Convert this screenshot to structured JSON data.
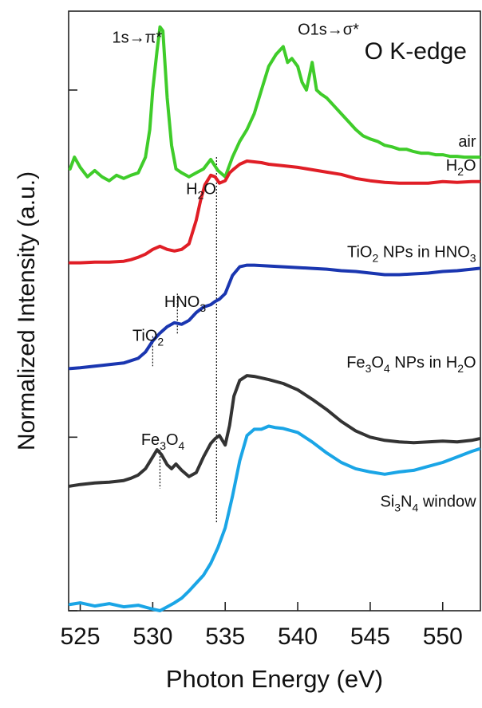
{
  "chart_data": {
    "type": "line",
    "title": "O K-edge",
    "xlabel": "Photon Energy (eV)",
    "ylabel": "Normalized Intensity (a.u.)",
    "xlim": [
      524.2,
      552.6
    ],
    "ylim": [
      0,
      7.6
    ],
    "x_ticks": [
      525,
      530,
      535,
      540,
      545,
      550
    ],
    "x_tick_labels": [
      "525",
      "530",
      "535",
      "540",
      "545",
      "550"
    ],
    "y_ticks_labels": false,
    "colors": {
      "air": "#3fcc2a",
      "h2o": "#e01e26",
      "tio2": "#1a36b0",
      "fe3o4": "#333333",
      "si3n4": "#1aa5e6"
    },
    "series": [
      {
        "key": "air",
        "name": "air",
        "x": [
          524.3,
          524.6,
          525.0,
          525.5,
          526.0,
          526.5,
          527.0,
          527.5,
          528.0,
          528.5,
          529.0,
          529.5,
          529.8,
          530.0,
          530.3,
          530.5,
          530.7,
          531.0,
          531.3,
          531.6,
          532.0,
          532.5,
          533.0,
          533.5,
          534.0,
          534.5,
          535.0,
          535.5,
          536.0,
          536.5,
          537.0,
          537.5,
          538.0,
          538.5,
          539.0,
          539.3,
          539.6,
          540.0,
          540.3,
          540.6,
          541.0,
          541.3,
          541.6,
          542.0,
          542.5,
          543.0,
          543.5,
          544.0,
          544.5,
          545.0,
          545.5,
          546.0,
          546.5,
          547.0,
          547.5,
          548.0,
          548.5,
          549.0,
          549.5,
          550.0,
          550.5,
          551.0,
          551.5,
          552.0,
          552.5
        ],
        "y": [
          5.6,
          5.75,
          5.62,
          5.5,
          5.58,
          5.5,
          5.45,
          5.52,
          5.48,
          5.52,
          5.55,
          5.75,
          6.1,
          6.6,
          7.1,
          7.4,
          7.35,
          6.5,
          5.9,
          5.6,
          5.55,
          5.5,
          5.55,
          5.6,
          5.72,
          5.58,
          5.5,
          5.75,
          5.95,
          6.1,
          6.3,
          6.6,
          6.9,
          7.05,
          7.15,
          6.95,
          7.0,
          6.9,
          6.7,
          6.6,
          6.95,
          6.6,
          6.55,
          6.5,
          6.4,
          6.3,
          6.2,
          6.1,
          6.02,
          5.98,
          5.95,
          5.9,
          5.88,
          5.85,
          5.85,
          5.82,
          5.8,
          5.8,
          5.78,
          5.78,
          5.76,
          5.76,
          5.75,
          5.75,
          5.75
        ]
      },
      {
        "key": "h2o",
        "name": "H₂O",
        "x": [
          524.3,
          525.0,
          526.0,
          527.0,
          528.0,
          528.5,
          529.0,
          529.5,
          530.0,
          530.5,
          531.0,
          531.5,
          532.0,
          532.5,
          533.0,
          533.3,
          533.6,
          534.0,
          534.3,
          534.6,
          535.0,
          535.3,
          535.6,
          536.0,
          536.5,
          537.0,
          537.5,
          538.0,
          539.0,
          540.0,
          541.0,
          542.0,
          543.0,
          544.0,
          545.0,
          546.0,
          547.0,
          548.0,
          549.0,
          550.0,
          551.0,
          552.0,
          552.5
        ],
        "y": [
          4.41,
          4.41,
          4.42,
          4.42,
          4.43,
          4.45,
          4.48,
          4.52,
          4.58,
          4.62,
          4.58,
          4.56,
          4.58,
          4.65,
          4.95,
          5.2,
          5.4,
          5.52,
          5.5,
          5.42,
          5.45,
          5.55,
          5.6,
          5.66,
          5.7,
          5.69,
          5.68,
          5.66,
          5.64,
          5.62,
          5.59,
          5.56,
          5.53,
          5.48,
          5.45,
          5.43,
          5.42,
          5.42,
          5.42,
          5.44,
          5.43,
          5.44,
          5.44
        ]
      },
      {
        "key": "tio2",
        "name": "TiO₂ NPs in HNO₃",
        "x": [
          524.3,
          525.0,
          526.0,
          527.0,
          528.0,
          529.0,
          529.5,
          530.0,
          530.5,
          531.0,
          531.5,
          532.0,
          532.5,
          533.0,
          533.5,
          534.0,
          534.3,
          534.6,
          535.0,
          535.5,
          536.0,
          536.5,
          537.0,
          538.0,
          539.0,
          540.0,
          541.0,
          542.0,
          543.0,
          544.0,
          545.0,
          546.0,
          547.0,
          548.0,
          549.0,
          550.0,
          551.0,
          552.0,
          552.5
        ],
        "y": [
          3.07,
          3.08,
          3.1,
          3.12,
          3.14,
          3.2,
          3.28,
          3.42,
          3.52,
          3.6,
          3.65,
          3.63,
          3.68,
          3.78,
          3.85,
          3.88,
          3.92,
          3.95,
          4.02,
          4.25,
          4.36,
          4.38,
          4.38,
          4.37,
          4.36,
          4.35,
          4.34,
          4.33,
          4.31,
          4.3,
          4.28,
          4.26,
          4.26,
          4.27,
          4.28,
          4.3,
          4.31,
          4.33,
          4.34
        ]
      },
      {
        "key": "fe3o4",
        "name": "Fe₃O₄ NPs in H₂O",
        "x": [
          524.3,
          525.0,
          526.0,
          527.0,
          528.0,
          528.5,
          529.0,
          529.5,
          530.0,
          530.3,
          530.6,
          531.0,
          531.3,
          531.6,
          532.0,
          532.5,
          533.0,
          533.5,
          534.0,
          534.3,
          534.6,
          535.0,
          535.3,
          535.6,
          536.0,
          536.5,
          537.0,
          538.0,
          539.0,
          540.0,
          541.0,
          542.0,
          543.0,
          544.0,
          545.0,
          546.0,
          547.0,
          548.0,
          549.0,
          550.0,
          551.0,
          552.0,
          552.5
        ],
        "y": [
          1.58,
          1.6,
          1.62,
          1.63,
          1.65,
          1.68,
          1.72,
          1.8,
          1.95,
          2.04,
          1.98,
          1.85,
          1.8,
          1.86,
          1.78,
          1.7,
          1.75,
          1.95,
          2.12,
          2.18,
          2.22,
          2.1,
          2.35,
          2.72,
          2.92,
          2.98,
          2.97,
          2.93,
          2.88,
          2.8,
          2.68,
          2.55,
          2.4,
          2.28,
          2.2,
          2.16,
          2.14,
          2.13,
          2.14,
          2.15,
          2.14,
          2.16,
          2.18
        ]
      },
      {
        "key": "si3n4",
        "name": "Si₃N₄ window",
        "x": [
          524.3,
          525.0,
          526.0,
          527.0,
          528.0,
          529.0,
          530.0,
          530.5,
          531.0,
          531.5,
          532.0,
          532.5,
          533.0,
          533.5,
          534.0,
          534.5,
          535.0,
          535.5,
          536.0,
          536.5,
          537.0,
          537.5,
          538.0,
          538.5,
          539.0,
          540.0,
          541.0,
          542.0,
          543.0,
          544.0,
          545.0,
          546.0,
          547.0,
          548.0,
          549.0,
          550.0,
          551.0,
          552.0,
          552.5
        ],
        "y": [
          0.08,
          0.1,
          0.06,
          0.09,
          0.05,
          0.07,
          0.02,
          0.0,
          0.05,
          0.1,
          0.16,
          0.25,
          0.35,
          0.45,
          0.6,
          0.8,
          1.05,
          1.45,
          1.9,
          2.22,
          2.3,
          2.3,
          2.34,
          2.32,
          2.31,
          2.26,
          2.14,
          2.0,
          1.88,
          1.8,
          1.76,
          1.73,
          1.76,
          1.78,
          1.83,
          1.88,
          1.95,
          2.02,
          2.05
        ]
      }
    ],
    "labels": [
      {
        "key": "air",
        "text": "air",
        "x": 552.3,
        "y": 5.88
      },
      {
        "key": "h2o",
        "text": "H₂O",
        "x": 552.3,
        "y": 5.58
      },
      {
        "key": "tio2",
        "text": "TiO₂ NPs in HNO₃",
        "x": 552.3,
        "y": 4.48
      },
      {
        "key": "fe3o4",
        "text": "Fe₃O₄ NPs in H₂O",
        "x": 552.3,
        "y": 3.08
      },
      {
        "key": "si3n4",
        "text": "Si₃N₄ window",
        "x": 552.3,
        "y": 1.32
      }
    ],
    "annotations": [
      {
        "key": "pi",
        "text": "1s→π*",
        "x": 527.2,
        "y": 7.2
      },
      {
        "key": "sigma",
        "text": "O1s→σ*",
        "x": 540.0,
        "y": 7.3
      },
      {
        "key": "h2o_peak",
        "text": "H₂O",
        "x": 532.3,
        "y": 5.28
      },
      {
        "key": "hno3",
        "text": "HNO₃",
        "x": 530.8,
        "y": 3.85
      },
      {
        "key": "tio2_peak",
        "text": "TiO₂",
        "x": 528.6,
        "y": 3.42
      },
      {
        "key": "fe3o4_peak",
        "text": "Fe₃O₄",
        "x": 529.2,
        "y": 2.1
      }
    ],
    "vlines": [
      {
        "x": 534.4,
        "y0": 1.12,
        "y1": 5.75
      },
      {
        "x": 531.7,
        "y0": 3.5,
        "y1": 4.02
      },
      {
        "x": 530.0,
        "y0": 3.1,
        "y1": 3.48
      },
      {
        "x": 530.5,
        "y0": 1.55,
        "y1": 2.04
      }
    ]
  }
}
